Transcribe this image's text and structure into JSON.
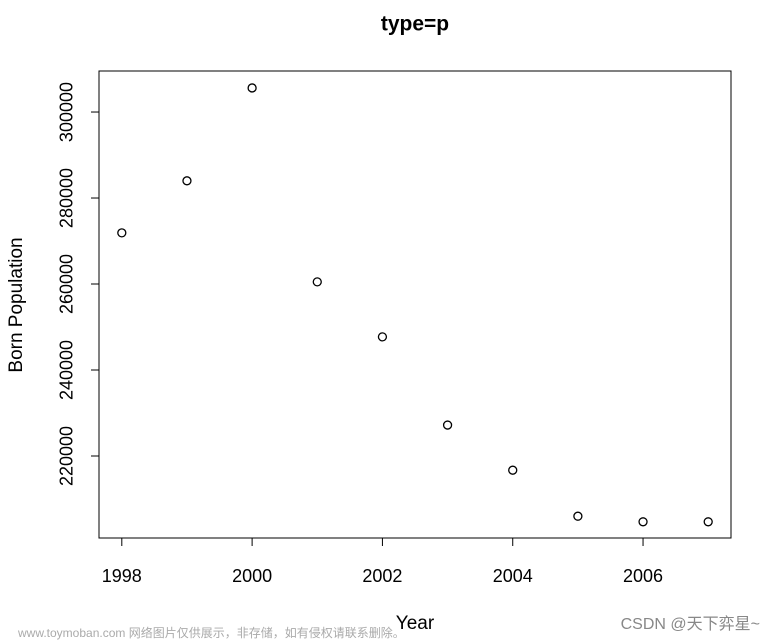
{
  "chart_data": {
    "type": "scatter",
    "title": "type=p",
    "x_label": "Year",
    "y_label": "Born Population",
    "x": [
      1998,
      1999,
      2000,
      2001,
      2002,
      2003,
      2004,
      2005,
      2006,
      2007
    ],
    "values": [
      271900,
      284000,
      305600,
      260500,
      247700,
      227200,
      216700,
      206000,
      204700,
      204700
    ],
    "color": "#000000",
    "xlim": [
      1997.65,
      2007.35
    ],
    "ylim": [
      200930,
      309540
    ],
    "xticks": [
      1998,
      2000,
      2002,
      2004,
      2006
    ],
    "yticks": [
      220000,
      240000,
      260000,
      280000,
      300000
    ]
  },
  "watermark": {
    "left": "www.toymoban.com 网络图片仅供展示，非存储，如有侵权请联系删除。",
    "right": "CSDN @天下弈星~"
  }
}
